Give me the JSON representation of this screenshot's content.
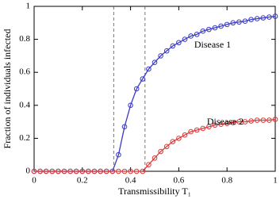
{
  "chart_data": {
    "type": "line",
    "xlabel": "Transmissibility T₁",
    "ylabel": "Fraction of individuals infected",
    "x": [
      0,
      0.025,
      0.05,
      0.075,
      0.1,
      0.125,
      0.15,
      0.175,
      0.2,
      0.225,
      0.25,
      0.275,
      0.3,
      0.325,
      0.35,
      0.375,
      0.4,
      0.425,
      0.45,
      0.475,
      0.5,
      0.525,
      0.55,
      0.575,
      0.6,
      0.625,
      0.65,
      0.675,
      0.7,
      0.725,
      0.75,
      0.775,
      0.8,
      0.825,
      0.85,
      0.875,
      0.9,
      0.925,
      0.95,
      0.975,
      1
    ],
    "series": [
      {
        "name": "Disease 1",
        "color": "#3a3ac8",
        "values": [
          0,
          0,
          0,
          0,
          0,
          0,
          0,
          0,
          0,
          0,
          0,
          0,
          0,
          0,
          0.1,
          0.27,
          0.4,
          0.5,
          0.56,
          0.62,
          0.66,
          0.7,
          0.73,
          0.76,
          0.78,
          0.8,
          0.82,
          0.83,
          0.85,
          0.86,
          0.87,
          0.88,
          0.89,
          0.9,
          0.905,
          0.91,
          0.92,
          0.925,
          0.93,
          0.935,
          0.94
        ]
      },
      {
        "name": "Disease 2",
        "color": "#d83a3a",
        "values": [
          0,
          0,
          0,
          0,
          0,
          0,
          0,
          0,
          0,
          0,
          0,
          0,
          0,
          0,
          0,
          0,
          0,
          0,
          0,
          0.04,
          0.08,
          0.12,
          0.15,
          0.18,
          0.2,
          0.22,
          0.24,
          0.25,
          0.26,
          0.27,
          0.28,
          0.285,
          0.29,
          0.295,
          0.3,
          0.3,
          0.305,
          0.31,
          0.31,
          0.31,
          0.315
        ]
      }
    ],
    "thresholds": [
      0.33,
      0.46
    ],
    "xlim": [
      0,
      1
    ],
    "ylim": [
      0,
      1
    ],
    "xticks": [
      0,
      0.2,
      0.4,
      0.6,
      0.8,
      1
    ],
    "yticks": [
      0,
      0.2,
      0.4,
      0.6,
      0.8,
      1
    ]
  }
}
